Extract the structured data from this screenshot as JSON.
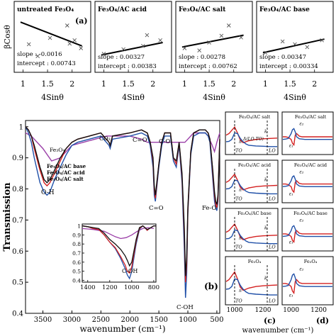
{
  "figure": {
    "top_ylabel": "βCosθ",
    "top_xlabel": "4Sinθ",
    "main_xlabel": "wavenumber (cm⁻¹)",
    "main_ylabel": "Transmission",
    "right_xlabel": "wavenumber (cm⁻¹)"
  },
  "panels": {
    "a": "(a)",
    "b": "(b)",
    "c": "(c)",
    "d": "(d)"
  },
  "colors": {
    "untreated": "#9b3fa8",
    "ac_base": "#111111",
    "ac_acid": "#d42020",
    "ac_salt": "#2050a8",
    "eps1": "#d42020",
    "eps2": "#2050a8"
  },
  "chart_data": [
    {
      "type": "scatter",
      "title": "untreated Fe₃O₄",
      "panel_label": "(a)",
      "xlabel": "4Sinθ",
      "ylabel": "βCosθ",
      "xticks": [
        "1",
        "1.5",
        "2"
      ],
      "xlim": [
        0.85,
        2.35
      ],
      "ylim": [
        0.0,
        1.0
      ],
      "slope_text": "slope : -0.0016",
      "intercept_text": "intercept : 0.00743",
      "fit": {
        "x": [
          0.95,
          2.2
        ],
        "y": [
          0.86,
          0.44
        ]
      },
      "points": [
        [
          1.12,
          0.47
        ],
        [
          1.3,
          0.26
        ],
        [
          1.55,
          0.58
        ],
        [
          1.9,
          0.8
        ],
        [
          1.95,
          0.48
        ],
        [
          2.05,
          0.54
        ],
        [
          2.18,
          0.4
        ]
      ]
    },
    {
      "type": "scatter",
      "title": "Fe₃O₄/AC acid",
      "xlabel": "4Sinθ",
      "xticks": [
        "1",
        "1.5",
        "2"
      ],
      "xlim": [
        0.85,
        2.35
      ],
      "ylim": [
        0.0,
        1.0
      ],
      "slope_text": "slope : 0.00327",
      "intercept_text": "intercept : 0.00383",
      "fit": {
        "x": [
          0.95,
          2.2
        ],
        "y": [
          0.28,
          0.5
        ]
      },
      "points": [
        [
          1.0,
          0.3
        ],
        [
          1.4,
          0.38
        ],
        [
          1.8,
          0.44
        ],
        [
          1.88,
          0.63
        ],
        [
          2.15,
          0.54
        ]
      ]
    },
    {
      "type": "scatter",
      "title": "Fe₃O₄/AC salt",
      "xlabel": "4Sinθ",
      "xticks": [
        "1",
        "1.5",
        "2"
      ],
      "xlim": [
        0.85,
        2.35
      ],
      "ylim": [
        0.0,
        1.0
      ],
      "slope_text": "slope : 0.00278",
      "intercept_text": "intercept : 0.00762",
      "fit": {
        "x": [
          0.95,
          2.2
        ],
        "y": [
          0.42,
          0.63
        ]
      },
      "points": [
        [
          1.0,
          0.4
        ],
        [
          1.3,
          0.36
        ],
        [
          1.5,
          0.5
        ],
        [
          1.75,
          0.62
        ],
        [
          1.9,
          0.8
        ],
        [
          2.15,
          0.59
        ]
      ]
    },
    {
      "type": "scatter",
      "title": "Fe₃O₄/AC base",
      "xlabel": "4Sinθ",
      "xticks": [
        "1",
        "1.5",
        "2"
      ],
      "xlim": [
        0.85,
        2.35
      ],
      "ylim": [
        0.0,
        1.0
      ],
      "slope_text": "slope : 0.00347",
      "intercept_text": "intercept : 0.00334",
      "fit": {
        "x": [
          0.95,
          2.2
        ],
        "y": [
          0.32,
          0.56
        ]
      },
      "points": [
        [
          1.0,
          0.32
        ],
        [
          1.35,
          0.52
        ],
        [
          1.6,
          0.47
        ],
        [
          1.85,
          0.42
        ],
        [
          2.15,
          0.54
        ]
      ]
    },
    {
      "type": "line",
      "panel_label": "(b)",
      "xlabel": "wavenumber (cm⁻¹)",
      "ylabel": "Transmission",
      "xlim": [
        3800,
        450
      ],
      "ylim": [
        0.4,
        1.02
      ],
      "xticks": [
        3500,
        3000,
        2500,
        2000,
        1500,
        1000,
        500
      ],
      "yticks": [
        0.4,
        0.5,
        0.6,
        0.7,
        0.8,
        0.9,
        1.0
      ],
      "legend": [
        "Fe₃O₄",
        "Fe₃O₄/AC base",
        "Fe₃O₄/AC acid",
        "Fe₃O₄/AC salt"
      ],
      "annotations": [
        "O-H",
        "CO₂",
        "C=O",
        "C-O",
        "C=O",
        "C-OH",
        "Fe-O"
      ],
      "series": [
        {
          "name": "Fe₃O₄",
          "x": [
            3800,
            3700,
            3500,
            3350,
            3200,
            3000,
            2800,
            2600,
            2400,
            2200,
            2000,
            1800,
            1700,
            1650,
            1500,
            1400,
            1300,
            1200,
            1100,
            1050,
            1000,
            950,
            900,
            800,
            700,
            650,
            580,
            540,
            500,
            450
          ],
          "y": [
            0.98,
            0.97,
            0.93,
            0.89,
            0.9,
            0.94,
            0.95,
            0.96,
            0.97,
            0.97,
            0.97,
            0.96,
            0.95,
            0.95,
            0.95,
            0.95,
            0.95,
            0.95,
            0.95,
            0.95,
            0.96,
            0.97,
            0.98,
            0.98,
            0.98,
            0.97,
            0.94,
            0.92,
            0.95,
            0.98
          ]
        },
        {
          "name": "Fe₃O₄/AC base",
          "x": [
            3800,
            3750,
            3700,
            3650,
            3550,
            3480,
            3430,
            3380,
            3300,
            3200,
            3100,
            3000,
            2900,
            2700,
            2500,
            2360,
            2340,
            2300,
            2000,
            1800,
            1700,
            1650,
            1600,
            1580,
            1560,
            1500,
            1450,
            1400,
            1300,
            1250,
            1200,
            1150,
            1100,
            1060,
            1040,
            1020,
            1000,
            950,
            900,
            800,
            700,
            650,
            620,
            590,
            570,
            540,
            520,
            500,
            480,
            460,
            450
          ],
          "y": [
            1.0,
            0.99,
            0.97,
            0.94,
            0.87,
            0.83,
            0.82,
            0.83,
            0.86,
            0.9,
            0.93,
            0.95,
            0.96,
            0.97,
            0.98,
            0.95,
            0.94,
            0.97,
            0.98,
            0.99,
            0.98,
            0.95,
            0.9,
            0.81,
            0.78,
            0.88,
            0.95,
            0.98,
            0.98,
            0.9,
            0.89,
            0.95,
            0.85,
            0.67,
            0.52,
            0.58,
            0.74,
            0.92,
            0.98,
            0.99,
            0.99,
            0.98,
            0.96,
            0.9,
            0.86,
            0.79,
            0.76,
            0.75,
            0.78,
            0.9,
            0.96
          ]
        },
        {
          "name": "Fe₃O₄/AC acid",
          "x": [
            3800,
            3750,
            3700,
            3650,
            3550,
            3480,
            3430,
            3380,
            3300,
            3200,
            3100,
            3000,
            2900,
            2700,
            2500,
            2360,
            2340,
            2300,
            2000,
            1800,
            1700,
            1650,
            1600,
            1580,
            1560,
            1500,
            1450,
            1400,
            1300,
            1250,
            1200,
            1150,
            1100,
            1060,
            1040,
            1020,
            1000,
            950,
            900,
            800,
            700,
            650,
            620,
            590,
            570,
            540,
            520,
            500,
            480,
            460,
            450
          ],
          "y": [
            1.0,
            0.99,
            0.97,
            0.93,
            0.86,
            0.82,
            0.81,
            0.82,
            0.85,
            0.89,
            0.93,
            0.95,
            0.96,
            0.97,
            0.98,
            0.95,
            0.94,
            0.97,
            0.98,
            0.99,
            0.98,
            0.95,
            0.89,
            0.8,
            0.77,
            0.88,
            0.95,
            0.98,
            0.98,
            0.9,
            0.88,
            0.95,
            0.84,
            0.65,
            0.5,
            0.56,
            0.73,
            0.92,
            0.98,
            0.99,
            0.99,
            0.98,
            0.96,
            0.9,
            0.85,
            0.78,
            0.75,
            0.74,
            0.77,
            0.9,
            0.96
          ]
        },
        {
          "name": "Fe₃O₄/AC salt",
          "x": [
            3800,
            3750,
            3700,
            3650,
            3550,
            3480,
            3430,
            3380,
            3300,
            3200,
            3100,
            3000,
            2900,
            2700,
            2500,
            2360,
            2340,
            2300,
            2000,
            1800,
            1700,
            1650,
            1600,
            1580,
            1560,
            1500,
            1450,
            1400,
            1300,
            1250,
            1200,
            1150,
            1100,
            1060,
            1040,
            1020,
            1000,
            950,
            900,
            800,
            700,
            650,
            620,
            590,
            570,
            540,
            520,
            500,
            480,
            460,
            450
          ],
          "y": [
            1.0,
            0.98,
            0.95,
            0.9,
            0.82,
            0.79,
            0.78,
            0.79,
            0.83,
            0.87,
            0.91,
            0.94,
            0.95,
            0.96,
            0.97,
            0.94,
            0.93,
            0.96,
            0.97,
            0.98,
            0.97,
            0.94,
            0.87,
            0.78,
            0.76,
            0.87,
            0.94,
            0.97,
            0.97,
            0.89,
            0.87,
            0.94,
            0.82,
            0.6,
            0.45,
            0.53,
            0.72,
            0.91,
            0.97,
            0.98,
            0.98,
            0.97,
            0.95,
            0.88,
            0.83,
            0.76,
            0.74,
            0.73,
            0.76,
            0.89,
            0.95
          ]
        }
      ]
    },
    {
      "type": "line",
      "inset": true,
      "xlim": [
        1450,
        780
      ],
      "ylim": [
        0.38,
        1.02
      ],
      "xticks": [
        1400,
        1200,
        1000,
        800
      ],
      "yticks": [
        0.4,
        0.5,
        0.6,
        0.7,
        0.8,
        0.9,
        1.0
      ],
      "annotations": [
        "C-OH"
      ],
      "series": [
        {
          "name": "Fe₃O₄",
          "x": [
            1450,
            1350,
            1250,
            1200,
            1150,
            1100,
            1050,
            1000,
            950,
            900,
            850,
            800
          ],
          "y": [
            0.97,
            0.96,
            0.94,
            0.91,
            0.88,
            0.86,
            0.87,
            0.9,
            0.94,
            0.97,
            0.98,
            0.97
          ]
        },
        {
          "name": "Fe₃O₄/AC base",
          "x": [
            1450,
            1400,
            1350,
            1300,
            1250,
            1200,
            1150,
            1100,
            1060,
            1040,
            1020,
            1000,
            960,
            930,
            900,
            880,
            860,
            840,
            800,
            780
          ],
          "y": [
            1.0,
            0.99,
            0.98,
            0.97,
            0.92,
            0.85,
            0.8,
            0.74,
            0.67,
            0.62,
            0.56,
            0.6,
            0.85,
            0.98,
            1.0,
            0.98,
            0.96,
            0.97,
            1.0,
            1.0
          ]
        },
        {
          "name": "Fe₃O₄/AC acid",
          "x": [
            1450,
            1400,
            1350,
            1300,
            1250,
            1200,
            1150,
            1100,
            1060,
            1040,
            1020,
            1000,
            960,
            930,
            900,
            880,
            860,
            840,
            800,
            780
          ],
          "y": [
            1.0,
            0.99,
            0.97,
            0.96,
            0.9,
            0.82,
            0.76,
            0.66,
            0.57,
            0.5,
            0.48,
            0.55,
            0.83,
            0.97,
            1.0,
            0.98,
            0.95,
            0.97,
            1.0,
            1.0
          ]
        },
        {
          "name": "Fe₃O₄/AC salt",
          "x": [
            1450,
            1400,
            1350,
            1300,
            1250,
            1200,
            1150,
            1100,
            1060,
            1040,
            1020,
            1000,
            960,
            930,
            900,
            880,
            860,
            840,
            800,
            780
          ],
          "y": [
            1.0,
            0.99,
            0.97,
            0.96,
            0.9,
            0.82,
            0.75,
            0.64,
            0.53,
            0.46,
            0.42,
            0.5,
            0.8,
            0.96,
            1.0,
            0.98,
            0.95,
            0.97,
            1.0,
            1.0
          ]
        }
      ]
    },
    {
      "type": "line",
      "panel_label": "(c)",
      "xlabel": "wavenumber (cm⁻¹)",
      "xlim": [
        940,
        1300
      ],
      "xticks": [
        1000,
        1200
      ],
      "subpanels": [
        {
          "title": "Fe₃O₄/AC salt",
          "labels": [
            "n",
            "k",
            "TO",
            "LO",
            "Δ(LO-TO)"
          ]
        },
        {
          "title": "Fe₃O₄/AC acid",
          "labels": [
            "n",
            "k",
            "TO",
            "LO"
          ]
        },
        {
          "title": "Fe₃O₄/AC base",
          "labels": [
            "n",
            "k",
            "TO",
            "LO"
          ]
        },
        {
          "title": "Fe₃O₄",
          "labels": [
            "n",
            "k",
            "TO",
            "LO"
          ]
        }
      ],
      "series": [
        {
          "name": "n",
          "x": [
            940,
            960,
            980,
            1000,
            1020,
            1040,
            1060,
            1080,
            1100,
            1150,
            1200,
            1250,
            1300
          ],
          "y": [
            0.55,
            0.6,
            0.7,
            0.8,
            0.62,
            0.4,
            0.32,
            0.35,
            0.38,
            0.42,
            0.44,
            0.45,
            0.46
          ]
        },
        {
          "name": "k",
          "x": [
            940,
            960,
            980,
            1000,
            1020,
            1040,
            1060,
            1080,
            1100,
            1150,
            1200,
            1250,
            1300
          ],
          "y": [
            0.35,
            0.36,
            0.42,
            0.62,
            0.6,
            0.45,
            0.35,
            0.28,
            0.24,
            0.22,
            0.21,
            0.2,
            0.2
          ]
        }
      ]
    },
    {
      "type": "line",
      "panel_label": "(d)",
      "xlabel": "wavenumber (cm⁻¹)",
      "xlim": [
        940,
        1300
      ],
      "xticks": [
        1000,
        1200
      ],
      "subpanels": [
        {
          "title": "Fe₃O₄/AC salt",
          "labels": [
            "ε₂",
            "ε₁"
          ]
        },
        {
          "title": "Fe₃O₄/AC acid",
          "labels": [
            "ε₂",
            "ε₁"
          ]
        },
        {
          "title": "Fe₃O₄/AC base",
          "labels": [
            "ε₂",
            "ε₁"
          ]
        },
        {
          "title": "Fe₃O₄",
          "labels": [
            "ε₂",
            "ε₁"
          ]
        }
      ],
      "series": [
        {
          "name": "ε₁",
          "x": [
            940,
            960,
            980,
            1000,
            1010,
            1020,
            1030,
            1040,
            1060,
            1080,
            1100,
            1150,
            1200,
            1250,
            1300
          ],
          "y": [
            0.5,
            0.5,
            0.48,
            0.42,
            0.3,
            0.25,
            0.55,
            0.6,
            0.52,
            0.5,
            0.5,
            0.5,
            0.5,
            0.5,
            0.5
          ]
        },
        {
          "name": "ε₂",
          "x": [
            940,
            960,
            980,
            1000,
            1010,
            1020,
            1030,
            1040,
            1060,
            1080,
            1100,
            1150,
            1200,
            1250,
            1300
          ],
          "y": [
            0.42,
            0.43,
            0.45,
            0.6,
            0.72,
            0.75,
            0.65,
            0.5,
            0.44,
            0.43,
            0.42,
            0.42,
            0.42,
            0.42,
            0.42
          ]
        }
      ]
    }
  ]
}
